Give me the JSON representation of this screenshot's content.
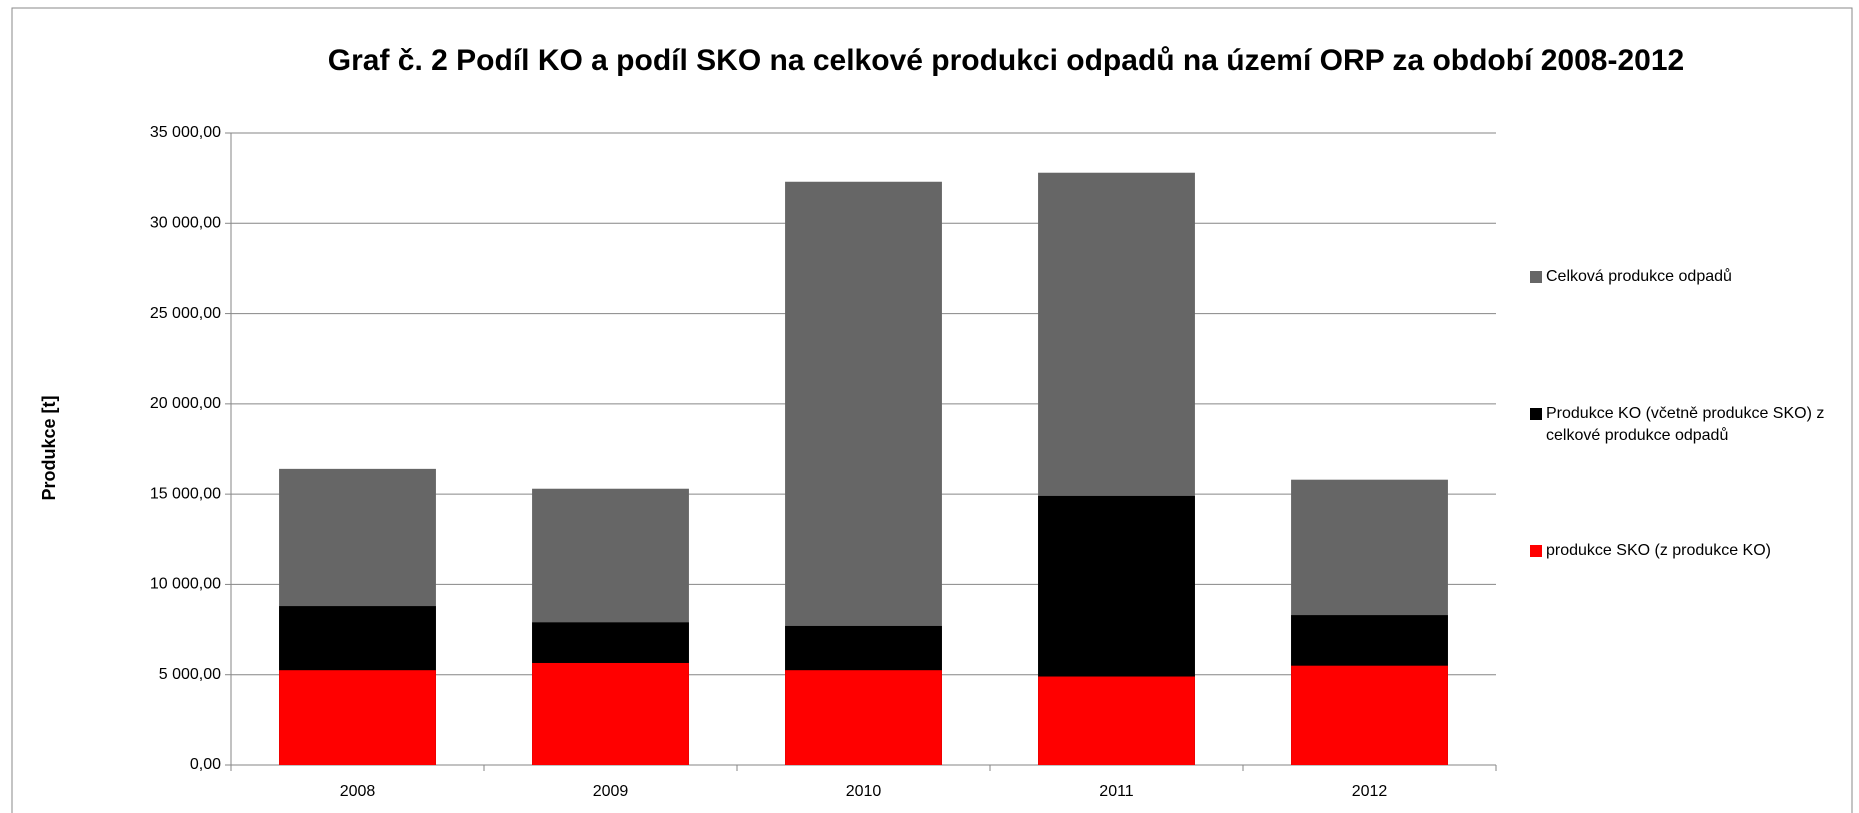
{
  "chart_data": {
    "type": "bar",
    "overlap": true,
    "title": "Graf č. 2 Podíl KO a podíl SKO na celkové produkci odpadů na území ORP za období 2008-2012",
    "y_label": "Produkce [t]",
    "categories": [
      "2008",
      "2009",
      "2010",
      "2011",
      "2012"
    ],
    "series": [
      {
        "name": "Celková produkce odpadů",
        "color": "#666666",
        "values": [
          16400,
          15300,
          32300,
          32800,
          15800
        ]
      },
      {
        "name": "Produkce KO (včetně produkce SKO) z celkové produkce odpadů",
        "color": "#000000",
        "values": [
          8800,
          7900,
          7700,
          14900,
          8300
        ]
      },
      {
        "name": "produkce SKO (z produkce KO)",
        "color": "#ff0000",
        "values": [
          5250,
          5650,
          5250,
          4900,
          5500
        ]
      }
    ],
    "ylim": [
      0,
      35000
    ],
    "yticks": [
      {
        "value": 0,
        "label": "0,00"
      },
      {
        "value": 5000,
        "label": "5 000,00"
      },
      {
        "value": 10000,
        "label": "10 000,00"
      },
      {
        "value": 15000,
        "label": "15 000,00"
      },
      {
        "value": 20000,
        "label": "20 000,00"
      },
      {
        "value": 25000,
        "label": "25 000,00"
      },
      {
        "value": 30000,
        "label": "30 000,00"
      },
      {
        "value": 35000,
        "label": "35 000,00"
      }
    ],
    "grid": true,
    "legend": "right"
  }
}
